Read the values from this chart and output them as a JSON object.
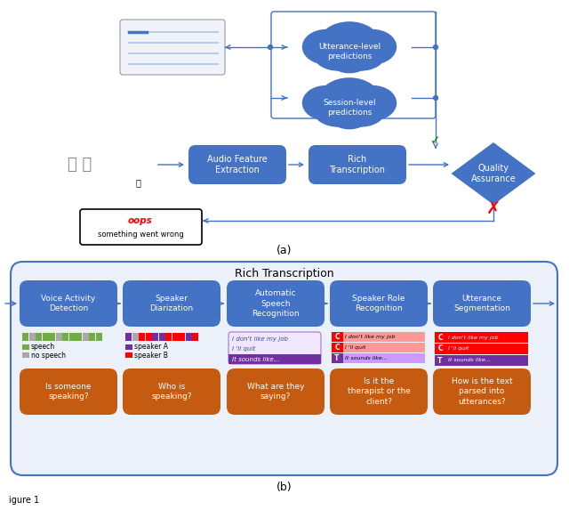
{
  "fig_width": 6.4,
  "fig_height": 5.73,
  "blue": "#4472C4",
  "blue_dark": "#2E5096",
  "orange": "#C55A11",
  "cloud_color": "#4472C4",
  "light_blue_bg": "#E8EFF8",
  "arrow_color": "#4472C4",
  "part_a_label": "(a)",
  "part_b_label": "(b)",
  "rich_transcription_title": "Rich Transcription",
  "figure_label": "igure 1",
  "boxes_top": [
    "Voice Activity\nDetection",
    "Speaker\nDiarization",
    "Automatic\nSpeech\nRecognition",
    "Speaker Role\nRecognition",
    "Utterance\nSegmentation"
  ],
  "boxes_bottom": [
    "Is someone\nspeaking?",
    "Who is\nspeaking?",
    "What are they\nsaying?",
    "Is it the\ntherapist or the\nclient?",
    "How is the text\nparsed into\nutterances?"
  ],
  "audio_box": "Audio Feature\nExtraction",
  "rich_box": "Rich\nTranscription",
  "quality_box": "Quality\nAssurance",
  "utterance_cloud": "Utterance-level\npredictions",
  "session_cloud": "Session-level\npredictions",
  "vad_legend_speech": "speech",
  "vad_legend_nospeech": "no speech",
  "diar_legend_a": "speaker A",
  "diar_legend_b": "speaker B",
  "green_color": "#70AD47",
  "gray_color": "#A9A9A9",
  "purple_color": "#7030A0",
  "red_color": "#FF0000"
}
